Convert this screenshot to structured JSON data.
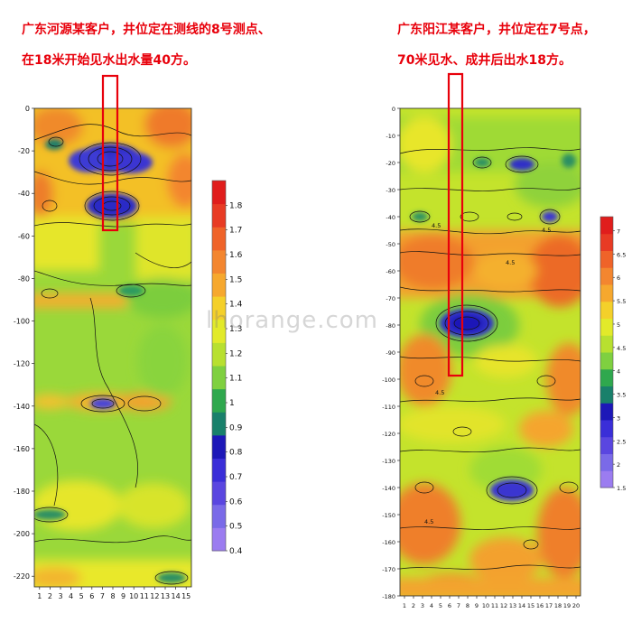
{
  "captions": {
    "left_line1": "广东河源某客户，井位定在测线的8号测点、",
    "left_line2": "在18米开始见水出水量40方。",
    "right_line1": "广东阳江某客户，井位定在7号点，",
    "right_line2": "70米见水、成井后出水18方。"
  },
  "watermark": "lhorange.com",
  "colors": {
    "accent_red": "#e8000b",
    "palette": [
      "#9b7cf0",
      "#7a6ae8",
      "#5a46e0",
      "#3a2ed8",
      "#1d18b8",
      "#19806b",
      "#2fa84e",
      "#7fd040",
      "#b8e030",
      "#e2ea2a",
      "#f4d02a",
      "#f6a82e",
      "#f3862f",
      "#ef6329",
      "#e83b24",
      "#e01d1c"
    ]
  },
  "chart_data": [
    {
      "type": "heatmap",
      "title": "",
      "xlabel": "",
      "ylabel": "",
      "x_ticks": [
        "1",
        "2",
        "3",
        "4",
        "5",
        "6",
        "7",
        "8",
        "9",
        "10",
        "11",
        "12",
        "13",
        "14",
        "15"
      ],
      "y_ticks": [
        0,
        -20,
        -40,
        -60,
        -80,
        -100,
        -120,
        -140,
        -160,
        -180,
        -200,
        -220
      ],
      "xlim": [
        1,
        15
      ],
      "ylim": [
        -225,
        0
      ],
      "colorbar_ticks": [
        0.4,
        0.5,
        0.6,
        0.7,
        0.8,
        0.9,
        1,
        1.1,
        1.2,
        1.3,
        1.4,
        1.5,
        1.6,
        1.7,
        1.8
      ],
      "colorbar_range": [
        0.4,
        1.9
      ],
      "marked_point": {
        "x": 8,
        "depth_range": [
          -60,
          -15
        ]
      },
      "anomalies": [
        {
          "x": 8,
          "y": -22,
          "value": 0.5
        },
        {
          "x": 8,
          "y": -47,
          "value": 0.5
        },
        {
          "x": 8.5,
          "y": -137,
          "value": 0.75
        },
        {
          "x": 9,
          "y": -87,
          "value": 0.8
        },
        {
          "x": 2,
          "y": -190,
          "value": 0.8
        },
        {
          "x": 13,
          "y": -220,
          "value": 0.8
        }
      ]
    },
    {
      "type": "heatmap",
      "title": "",
      "xlabel": "",
      "ylabel": "",
      "x_ticks": [
        "1",
        "2",
        "3",
        "4",
        "5",
        "6",
        "7",
        "8",
        "9",
        "10",
        "11",
        "12",
        "13",
        "14",
        "15",
        "16",
        "17",
        "18",
        "19",
        "20"
      ],
      "y_ticks": [
        0,
        -10,
        -20,
        -30,
        -40,
        -50,
        -60,
        -70,
        -80,
        -90,
        -100,
        -110,
        -120,
        -130,
        -140,
        -150,
        -160,
        -170,
        -180
      ],
      "xlim": [
        1,
        20
      ],
      "ylim": [
        -180,
        0
      ],
      "colorbar_ticks": [
        1.5,
        2,
        2.5,
        3,
        3.5,
        4,
        4.5,
        5,
        5.5,
        6,
        6.5,
        7
      ],
      "colorbar_range": [
        1.5,
        7.3
      ],
      "contour_labels": [
        "4.5",
        "4.5",
        "4.5",
        "4.5",
        "4.5"
      ],
      "marked_point": {
        "x": 7,
        "depth_range": [
          -97,
          0
        ]
      },
      "anomalies": [
        {
          "x": 6,
          "y": -83,
          "value": 2.0
        },
        {
          "x": 13.5,
          "y": -140,
          "value": 2.0
        },
        {
          "x": 13.5,
          "y": -20,
          "value": 2.0
        },
        {
          "x": 18,
          "y": -40,
          "value": 2.5
        },
        {
          "x": 10,
          "y": -20,
          "value": 2.5
        }
      ]
    }
  ]
}
